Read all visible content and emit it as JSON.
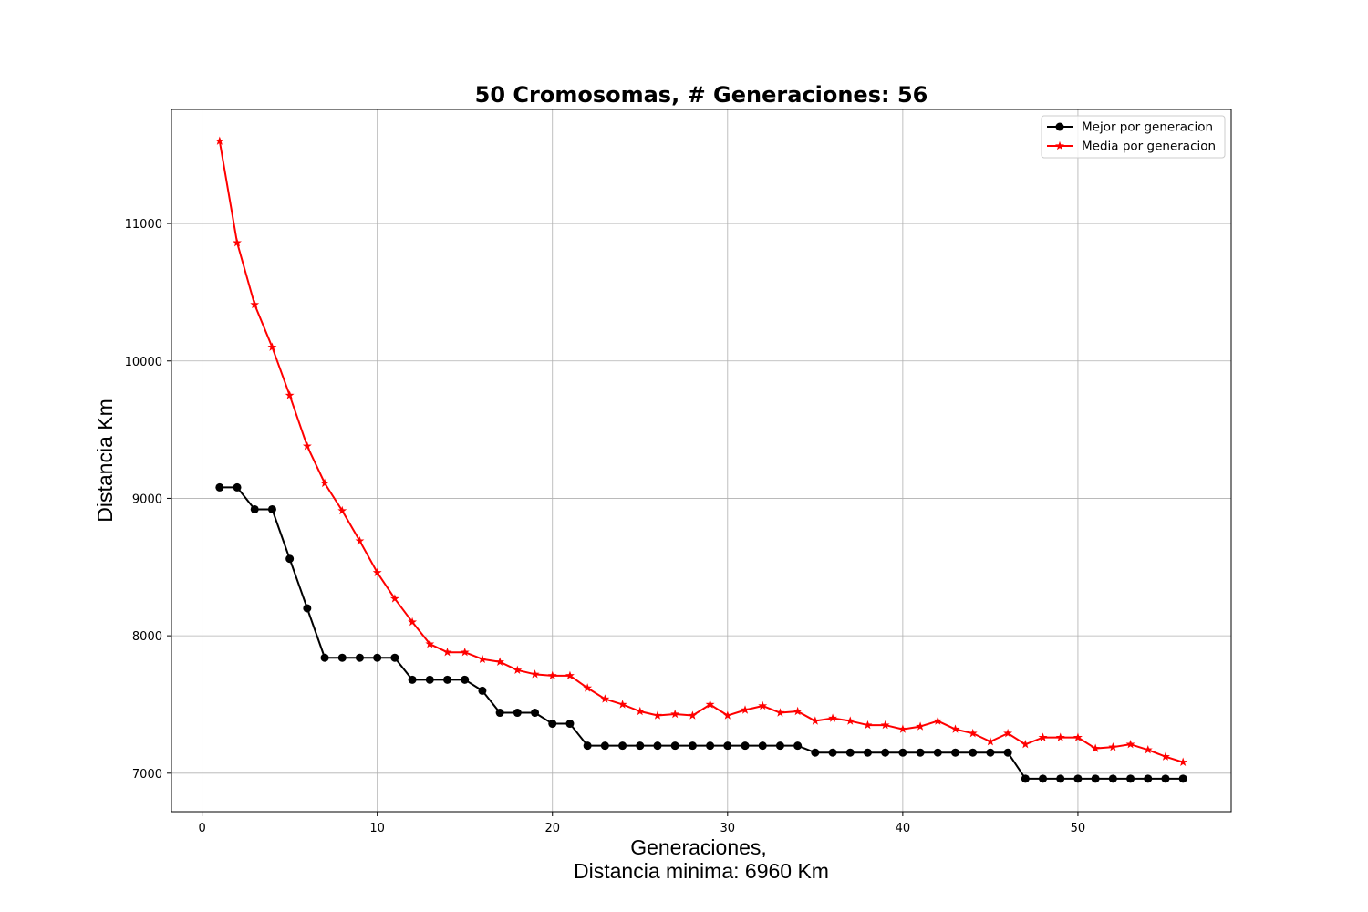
{
  "chart_data": {
    "type": "line",
    "title": "50 Cromosomas, # Generaciones: 56",
    "xlabel_line1": "Generaciones,",
    "xlabel_line2": "Distancia minima: 6960 Km",
    "ylabel": "Distancia Km",
    "xlim": [
      -1.75,
      58.75
    ],
    "ylim": [
      6720,
      11830
    ],
    "xticks": [
      0,
      10,
      20,
      30,
      40,
      50
    ],
    "yticks": [
      7000,
      8000,
      9000,
      10000,
      11000
    ],
    "grid": true,
    "legend_position": "top-right",
    "x": [
      1,
      2,
      3,
      4,
      5,
      6,
      7,
      8,
      9,
      10,
      11,
      12,
      13,
      14,
      15,
      16,
      17,
      18,
      19,
      20,
      21,
      22,
      23,
      24,
      25,
      26,
      27,
      28,
      29,
      30,
      31,
      32,
      33,
      34,
      35,
      36,
      37,
      38,
      39,
      40,
      41,
      42,
      43,
      44,
      45,
      46,
      47,
      48,
      49,
      50,
      51,
      52,
      53,
      54,
      55,
      56
    ],
    "series": [
      {
        "name": "Mejor por generacion",
        "color": "#000000",
        "marker": "circle",
        "values": [
          9080,
          9080,
          8920,
          8920,
          8560,
          8200,
          7840,
          7840,
          7840,
          7840,
          7840,
          7680,
          7680,
          7680,
          7680,
          7600,
          7440,
          7440,
          7440,
          7360,
          7360,
          7200,
          7200,
          7200,
          7200,
          7200,
          7200,
          7200,
          7200,
          7200,
          7200,
          7200,
          7200,
          7200,
          7150,
          7150,
          7150,
          7150,
          7150,
          7150,
          7150,
          7150,
          7150,
          7150,
          7150,
          7150,
          6960,
          6960,
          6960,
          6960,
          6960,
          6960,
          6960,
          6960,
          6960,
          6960
        ]
      },
      {
        "name": "Media por generacion",
        "color": "#ff0000",
        "marker": "star",
        "values": [
          11600,
          10860,
          10410,
          10100,
          9750,
          9380,
          9110,
          8910,
          8690,
          8460,
          8270,
          8100,
          7940,
          7880,
          7880,
          7830,
          7810,
          7750,
          7720,
          7710,
          7710,
          7620,
          7540,
          7500,
          7450,
          7420,
          7430,
          7420,
          7500,
          7420,
          7460,
          7490,
          7440,
          7450,
          7380,
          7400,
          7380,
          7350,
          7350,
          7320,
          7340,
          7380,
          7320,
          7290,
          7230,
          7290,
          7210,
          7260,
          7260,
          7260,
          7180,
          7190,
          7210,
          7170,
          7120,
          7080
        ]
      }
    ]
  }
}
